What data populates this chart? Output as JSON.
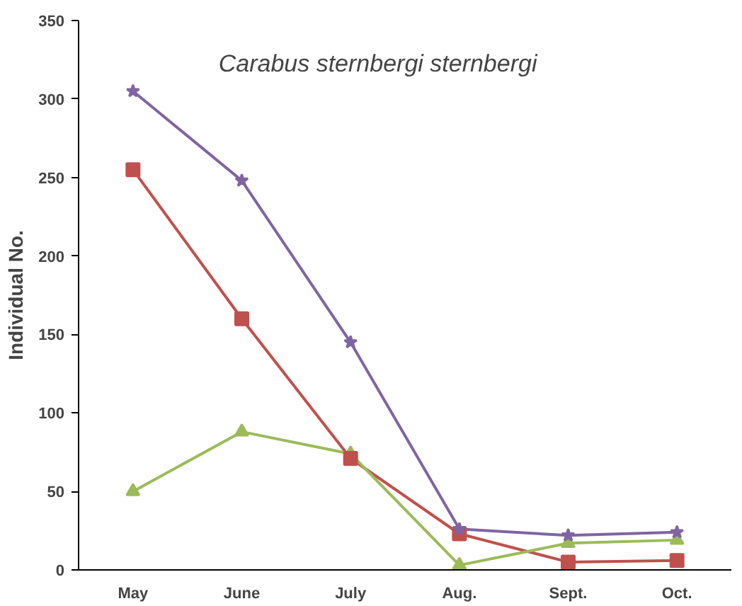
{
  "chart_data": {
    "type": "line",
    "title": "Carabus sternbergi sternbergi",
    "ylabel": "Individual No.",
    "categories": [
      "May",
      "June",
      "July",
      "Aug.",
      "Sept.",
      "Oct."
    ],
    "series": [
      {
        "color": "#8064a2",
        "marker": "star",
        "values": [
          305,
          248,
          145,
          26,
          22,
          24
        ]
      },
      {
        "color": "#c0504d",
        "marker": "square",
        "values": [
          255,
          160,
          71,
          23,
          5,
          6
        ]
      },
      {
        "color": "#9bbb59",
        "marker": "triangle",
        "values": [
          50,
          88,
          74,
          3,
          17,
          19
        ]
      }
    ],
    "ylim": [
      0,
      350
    ],
    "yticks": [
      0,
      50,
      100,
      150,
      200,
      250,
      300,
      350
    ],
    "grid": false
  }
}
